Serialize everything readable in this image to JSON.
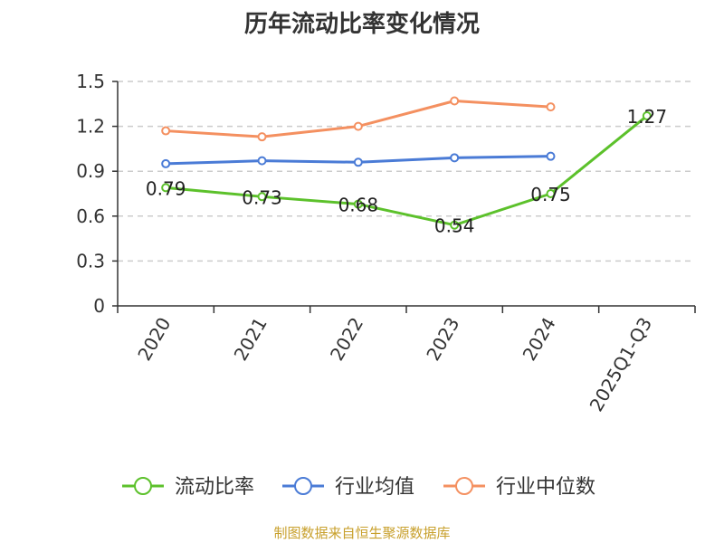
{
  "title": "历年流动比率变化情况",
  "source": "制图数据来自恒生聚源数据库",
  "chart_data": {
    "type": "line",
    "categories": [
      "2020",
      "2021",
      "2022",
      "2023",
      "2024",
      "2025Q1-Q3"
    ],
    "ylim": [
      0,
      1.5
    ],
    "yticks": [
      "0",
      "0.3",
      "0.6",
      "0.9",
      "1.2",
      "1.5"
    ],
    "grid": true,
    "legend_position": "bottom",
    "series": [
      {
        "name": "流动比率",
        "color": "#5cc12b",
        "values": [
          0.79,
          0.73,
          0.68,
          0.54,
          0.75,
          1.27
        ],
        "labels": [
          "0.79",
          "0.73",
          "0.68",
          "0.54",
          "0.75",
          "1.27"
        ]
      },
      {
        "name": "行业均值",
        "color": "#4a7bd6",
        "values": [
          0.95,
          0.97,
          0.96,
          0.99,
          1.0,
          null
        ]
      },
      {
        "name": "行业中位数",
        "color": "#f49060",
        "values": [
          1.17,
          1.13,
          1.2,
          1.37,
          1.33,
          null
        ]
      }
    ]
  }
}
